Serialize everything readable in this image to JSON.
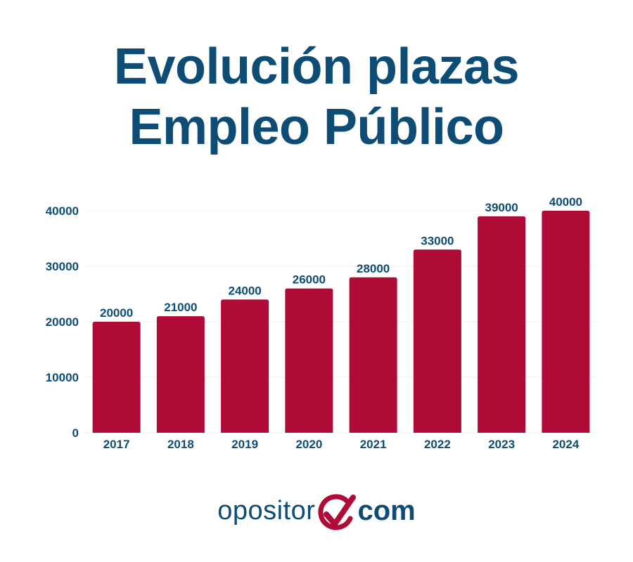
{
  "chart_data": {
    "type": "bar",
    "title": "Evolución plazas Empleo Público",
    "title_lines": [
      "Evolución plazas",
      "Empleo Público"
    ],
    "categories": [
      "2017",
      "2018",
      "2019",
      "2020",
      "2021",
      "2022",
      "2023",
      "2024"
    ],
    "values": [
      20000,
      21000,
      24000,
      26000,
      28000,
      33000,
      39000,
      40000
    ],
    "data_labels": [
      "20000",
      "21000",
      "24000",
      "26000",
      "28000",
      "33000",
      "39000",
      "40000"
    ],
    "y_ticks": [
      0,
      10000,
      20000,
      30000,
      40000
    ],
    "y_tick_labels": [
      "0",
      "10000",
      "20000",
      "30000",
      "40000"
    ],
    "ylim": [
      0,
      40000
    ],
    "xlabel": "",
    "ylabel": "",
    "grid": true,
    "legend": "none",
    "colors": {
      "bar": "#b00a36",
      "text": "#0d4d75",
      "grid": "#eeeeee"
    }
  },
  "logo": {
    "left_text": "opositor",
    "right_text": "com",
    "mark_icon": "checkmark-circle-icon",
    "mark_color": "#b00a36"
  }
}
